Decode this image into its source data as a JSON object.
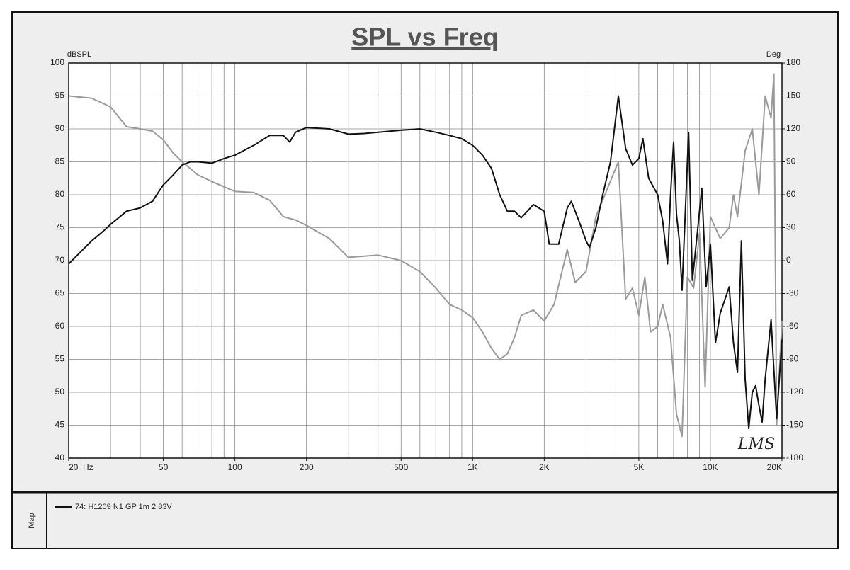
{
  "chart_data": {
    "type": "line",
    "title": "SPL vs Freq",
    "ylabel": "dBSPL",
    "y2label": "Deg",
    "side_label": "Map",
    "annotation": "LMS",
    "log_x": true,
    "grid": true,
    "xlim": [
      20,
      20000
    ],
    "xticks": [
      {
        "value": 20,
        "label": "20  Hz"
      },
      50,
      100,
      200,
      500,
      {
        "value": 1000,
        "label": "1K"
      },
      {
        "value": 2000,
        "label": "2K"
      },
      {
        "value": 5000,
        "label": "5K"
      },
      {
        "value": 10000,
        "label": "10K"
      },
      {
        "value": 20000,
        "label": "20K"
      }
    ],
    "xgrid": [
      20,
      30,
      40,
      50,
      60,
      70,
      80,
      90,
      100,
      200,
      300,
      400,
      500,
      600,
      700,
      800,
      900,
      1000,
      2000,
      3000,
      4000,
      5000,
      6000,
      7000,
      8000,
      9000,
      10000,
      20000
    ],
    "ylim": [
      40,
      100
    ],
    "yticks": [
      40,
      45,
      50,
      55,
      60,
      65,
      70,
      75,
      80,
      85,
      90,
      95,
      100
    ],
    "y2lim": [
      -180,
      180
    ],
    "y2ticks": [
      -180,
      -150,
      -120,
      -90,
      -60,
      -30,
      0,
      30,
      60,
      90,
      120,
      150,
      180
    ],
    "series": [
      {
        "name": "74: H1209 N1 GP 1m 2.83V",
        "color": "#111111",
        "x": [
          20,
          22,
          25,
          28,
          30,
          35,
          40,
          45,
          50,
          55,
          60,
          65,
          70,
          80,
          90,
          100,
          120,
          140,
          160,
          170,
          180,
          200,
          250,
          300,
          350,
          400,
          500,
          600,
          700,
          800,
          900,
          1000,
          1100,
          1200,
          1300,
          1400,
          1500,
          1600,
          1700,
          1800,
          2000,
          2100,
          2300,
          2500,
          2600,
          2800,
          3000,
          3100,
          3300,
          3500,
          3800,
          4100,
          4400,
          4700,
          5000,
          5200,
          5500,
          6000,
          6300,
          6600,
          6800,
          7000,
          7200,
          7400,
          7600,
          8100,
          8400,
          8800,
          9200,
          9600,
          10000,
          10500,
          11000,
          12000,
          12500,
          13000,
          13500,
          14000,
          14500,
          15000,
          15500,
          16000,
          16500,
          17000,
          18000,
          19000,
          20000
        ],
        "values": [
          69.5,
          71,
          73,
          74.5,
          75.5,
          77.5,
          78,
          79,
          81.5,
          83,
          84.5,
          85,
          85,
          84.8,
          85.5,
          86,
          87.5,
          89,
          89,
          88,
          89.5,
          90.2,
          90,
          89.2,
          89.3,
          89.5,
          89.8,
          90,
          89.5,
          89,
          88.5,
          87.5,
          86,
          84,
          80,
          77.5,
          77.5,
          76.5,
          77.5,
          78.5,
          77.5,
          72.5,
          72.5,
          78,
          79,
          76,
          73,
          72,
          75,
          79.5,
          85,
          95,
          87,
          84.5,
          85.5,
          88.5,
          82.5,
          80,
          76,
          69.5,
          80,
          88,
          77,
          73,
          65.5,
          89.5,
          67,
          74,
          81,
          66,
          72.5,
          57.5,
          62,
          66,
          57.5,
          53,
          73,
          52,
          44.5,
          50,
          51,
          48,
          45.5,
          52,
          61,
          46,
          58
        ]
      },
      {
        "color": "#9a9a9a",
        "axis": "y2",
        "x": [
          20,
          25,
          30,
          35,
          40,
          45,
          50,
          55,
          60,
          70,
          80,
          100,
          120,
          140,
          160,
          180,
          200,
          250,
          300,
          400,
          500,
          600,
          700,
          800,
          900,
          1000,
          1100,
          1200,
          1300,
          1400,
          1500,
          1600,
          1800,
          2000,
          2200,
          2500,
          2700,
          3000,
          3300,
          3600,
          4100,
          4400,
          4700,
          5000,
          5300,
          5600,
          6000,
          6300,
          6800,
          7200,
          7600,
          8000,
          8500,
          9000,
          9500,
          10000,
          11000,
          12000,
          12500,
          13000,
          14000,
          15000,
          16000,
          17000,
          18000,
          18500,
          19000,
          20000
        ],
        "values": [
          150,
          148,
          140,
          122,
          120,
          118,
          110,
          98,
          90,
          78,
          72,
          63,
          62,
          55,
          40,
          37,
          32,
          20,
          3,
          5,
          0,
          -10,
          -25,
          -40,
          -45,
          -52,
          -65,
          -80,
          -90,
          -85,
          -70,
          -50,
          -45,
          -55,
          -40,
          10,
          -20,
          -10,
          40,
          60,
          90,
          -35,
          -25,
          -50,
          -15,
          -65,
          -60,
          -40,
          -70,
          -140,
          -160,
          -15,
          -25,
          25,
          -115,
          40,
          20,
          30,
          60,
          40,
          100,
          120,
          60,
          150,
          130,
          170,
          -150,
          -55
        ]
      }
    ]
  }
}
